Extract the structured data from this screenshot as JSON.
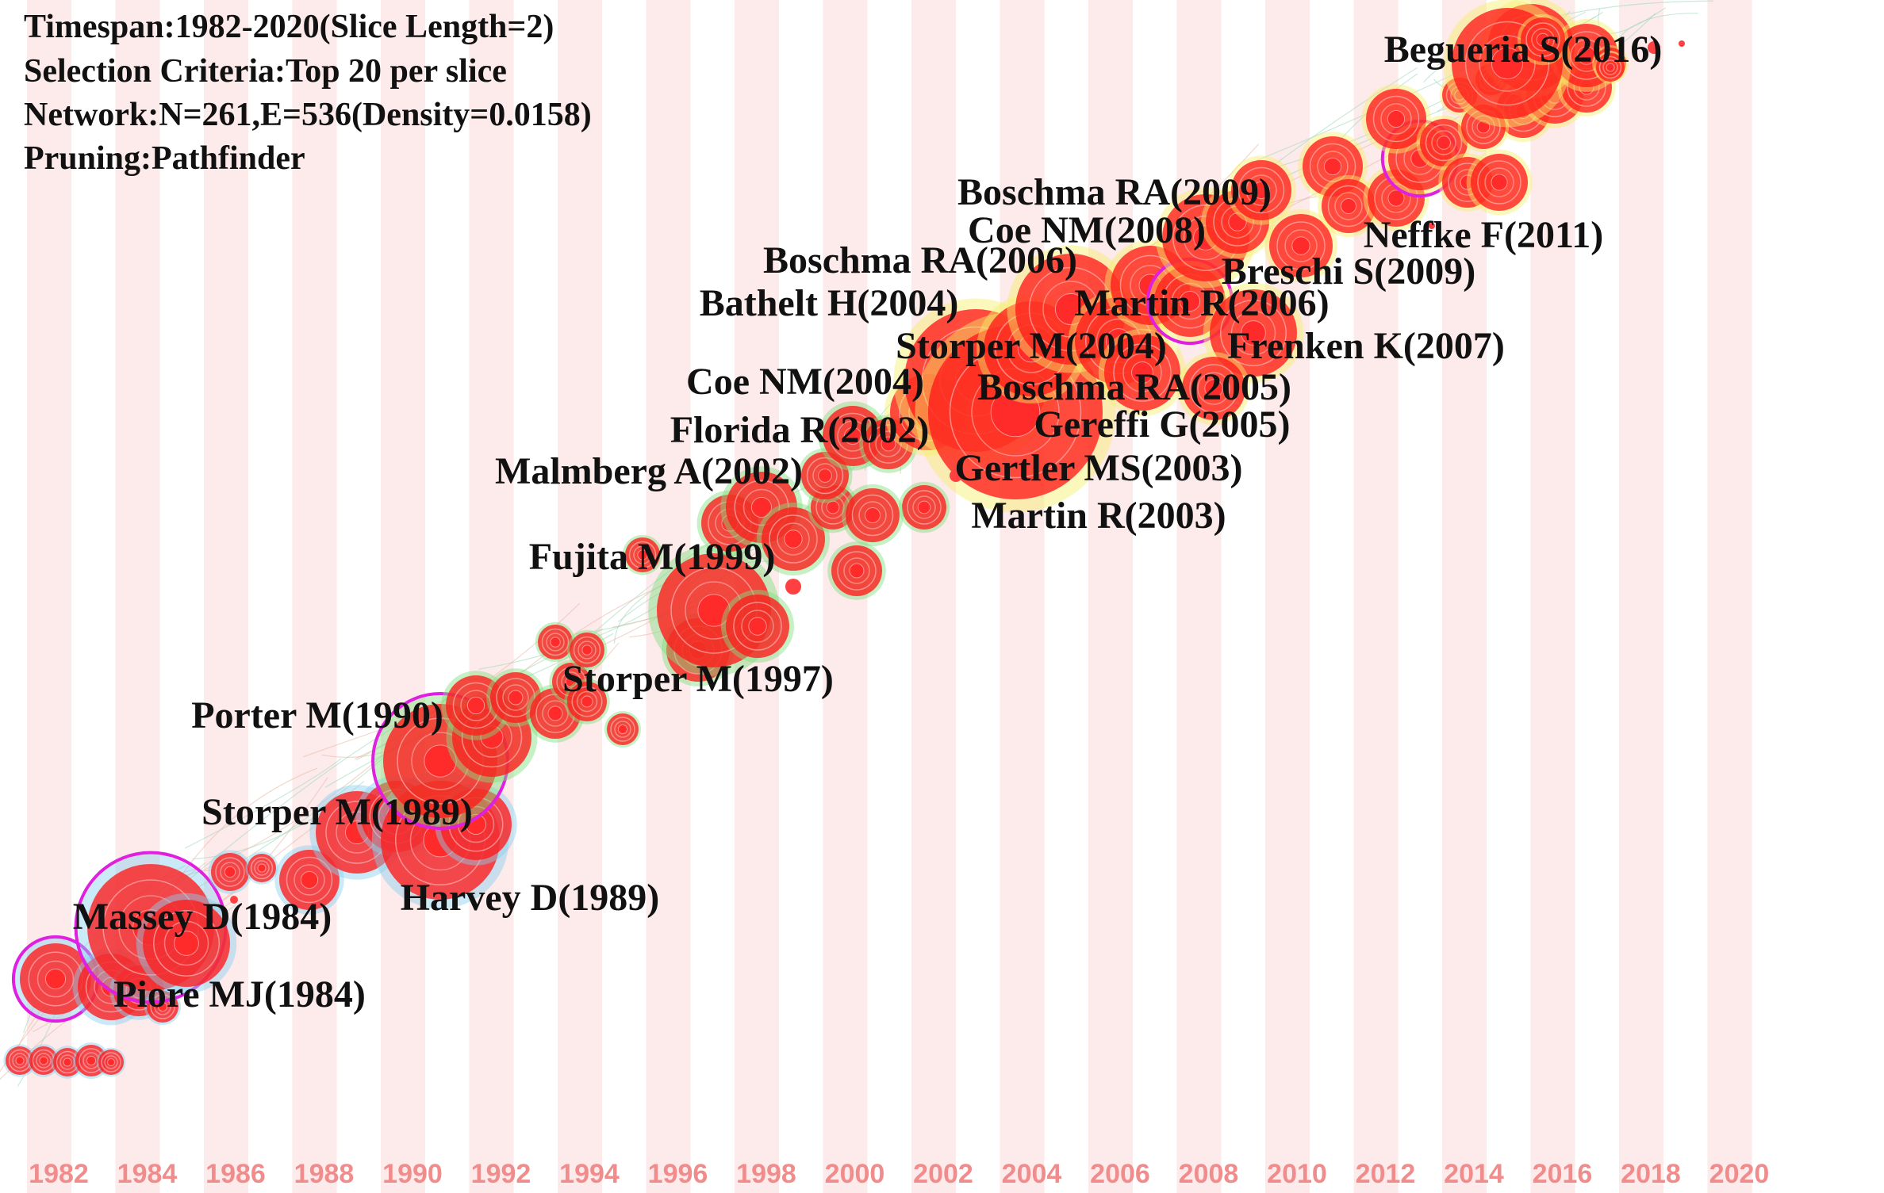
{
  "info": {
    "timespan": "Timespan:1982-2020(Slice Length=2)",
    "selection": "Selection Criteria:Top 20 per slice",
    "network": "Network:N=261,E=536(Density=0.0158)",
    "pruning": "Pruning:Pathfinder"
  },
  "timeline": {
    "years": [
      "1982",
      "1984",
      "1986",
      "1988",
      "1990",
      "1992",
      "1994",
      "1996",
      "1998",
      "2000",
      "2002",
      "2004",
      "2006",
      "2008",
      "2010",
      "2012",
      "2014",
      "2016",
      "2018",
      "2020"
    ],
    "year_label_color": "#f08c8c",
    "band_color": "#fdeaea"
  },
  "colors": {
    "node_core": "#ff1a1a",
    "node_old": "#8ad0f0",
    "node_mid": "#7fe07f",
    "node_new": "#f6f06a",
    "centrality_ring": "#e020e0",
    "label": "#111111"
  },
  "clusters": [
    {
      "name": "Begueria S(2016)"
    },
    {
      "name": "Boschma RA(2009)"
    },
    {
      "name": "Coe NM(2008)"
    },
    {
      "name": "Neffke F(2011)"
    },
    {
      "name": "Boschma RA(2006)"
    },
    {
      "name": "Breschi S(2009)"
    },
    {
      "name": "Bathelt H(2004)"
    },
    {
      "name": "Martin R(2006)"
    },
    {
      "name": "Storper M(2004)"
    },
    {
      "name": "Frenken K(2007)"
    },
    {
      "name": "Coe NM(2004)"
    },
    {
      "name": "Boschma RA(2005)"
    },
    {
      "name": "Gereffi G(2005)"
    },
    {
      "name": "Florida R(2002)"
    },
    {
      "name": "Gertler MS(2003)"
    },
    {
      "name": "Malmberg A(2002)"
    },
    {
      "name": "Martin R(2003)"
    },
    {
      "name": "Fujita M(1999)"
    },
    {
      "name": "Storper M(1997)"
    },
    {
      "name": "Porter M(1990)"
    },
    {
      "name": "Storper M(1989)"
    },
    {
      "name": "Harvey D(1989)"
    },
    {
      "name": "Massey D(1984)"
    },
    {
      "name": "Piore MJ(1984)"
    }
  ]
}
